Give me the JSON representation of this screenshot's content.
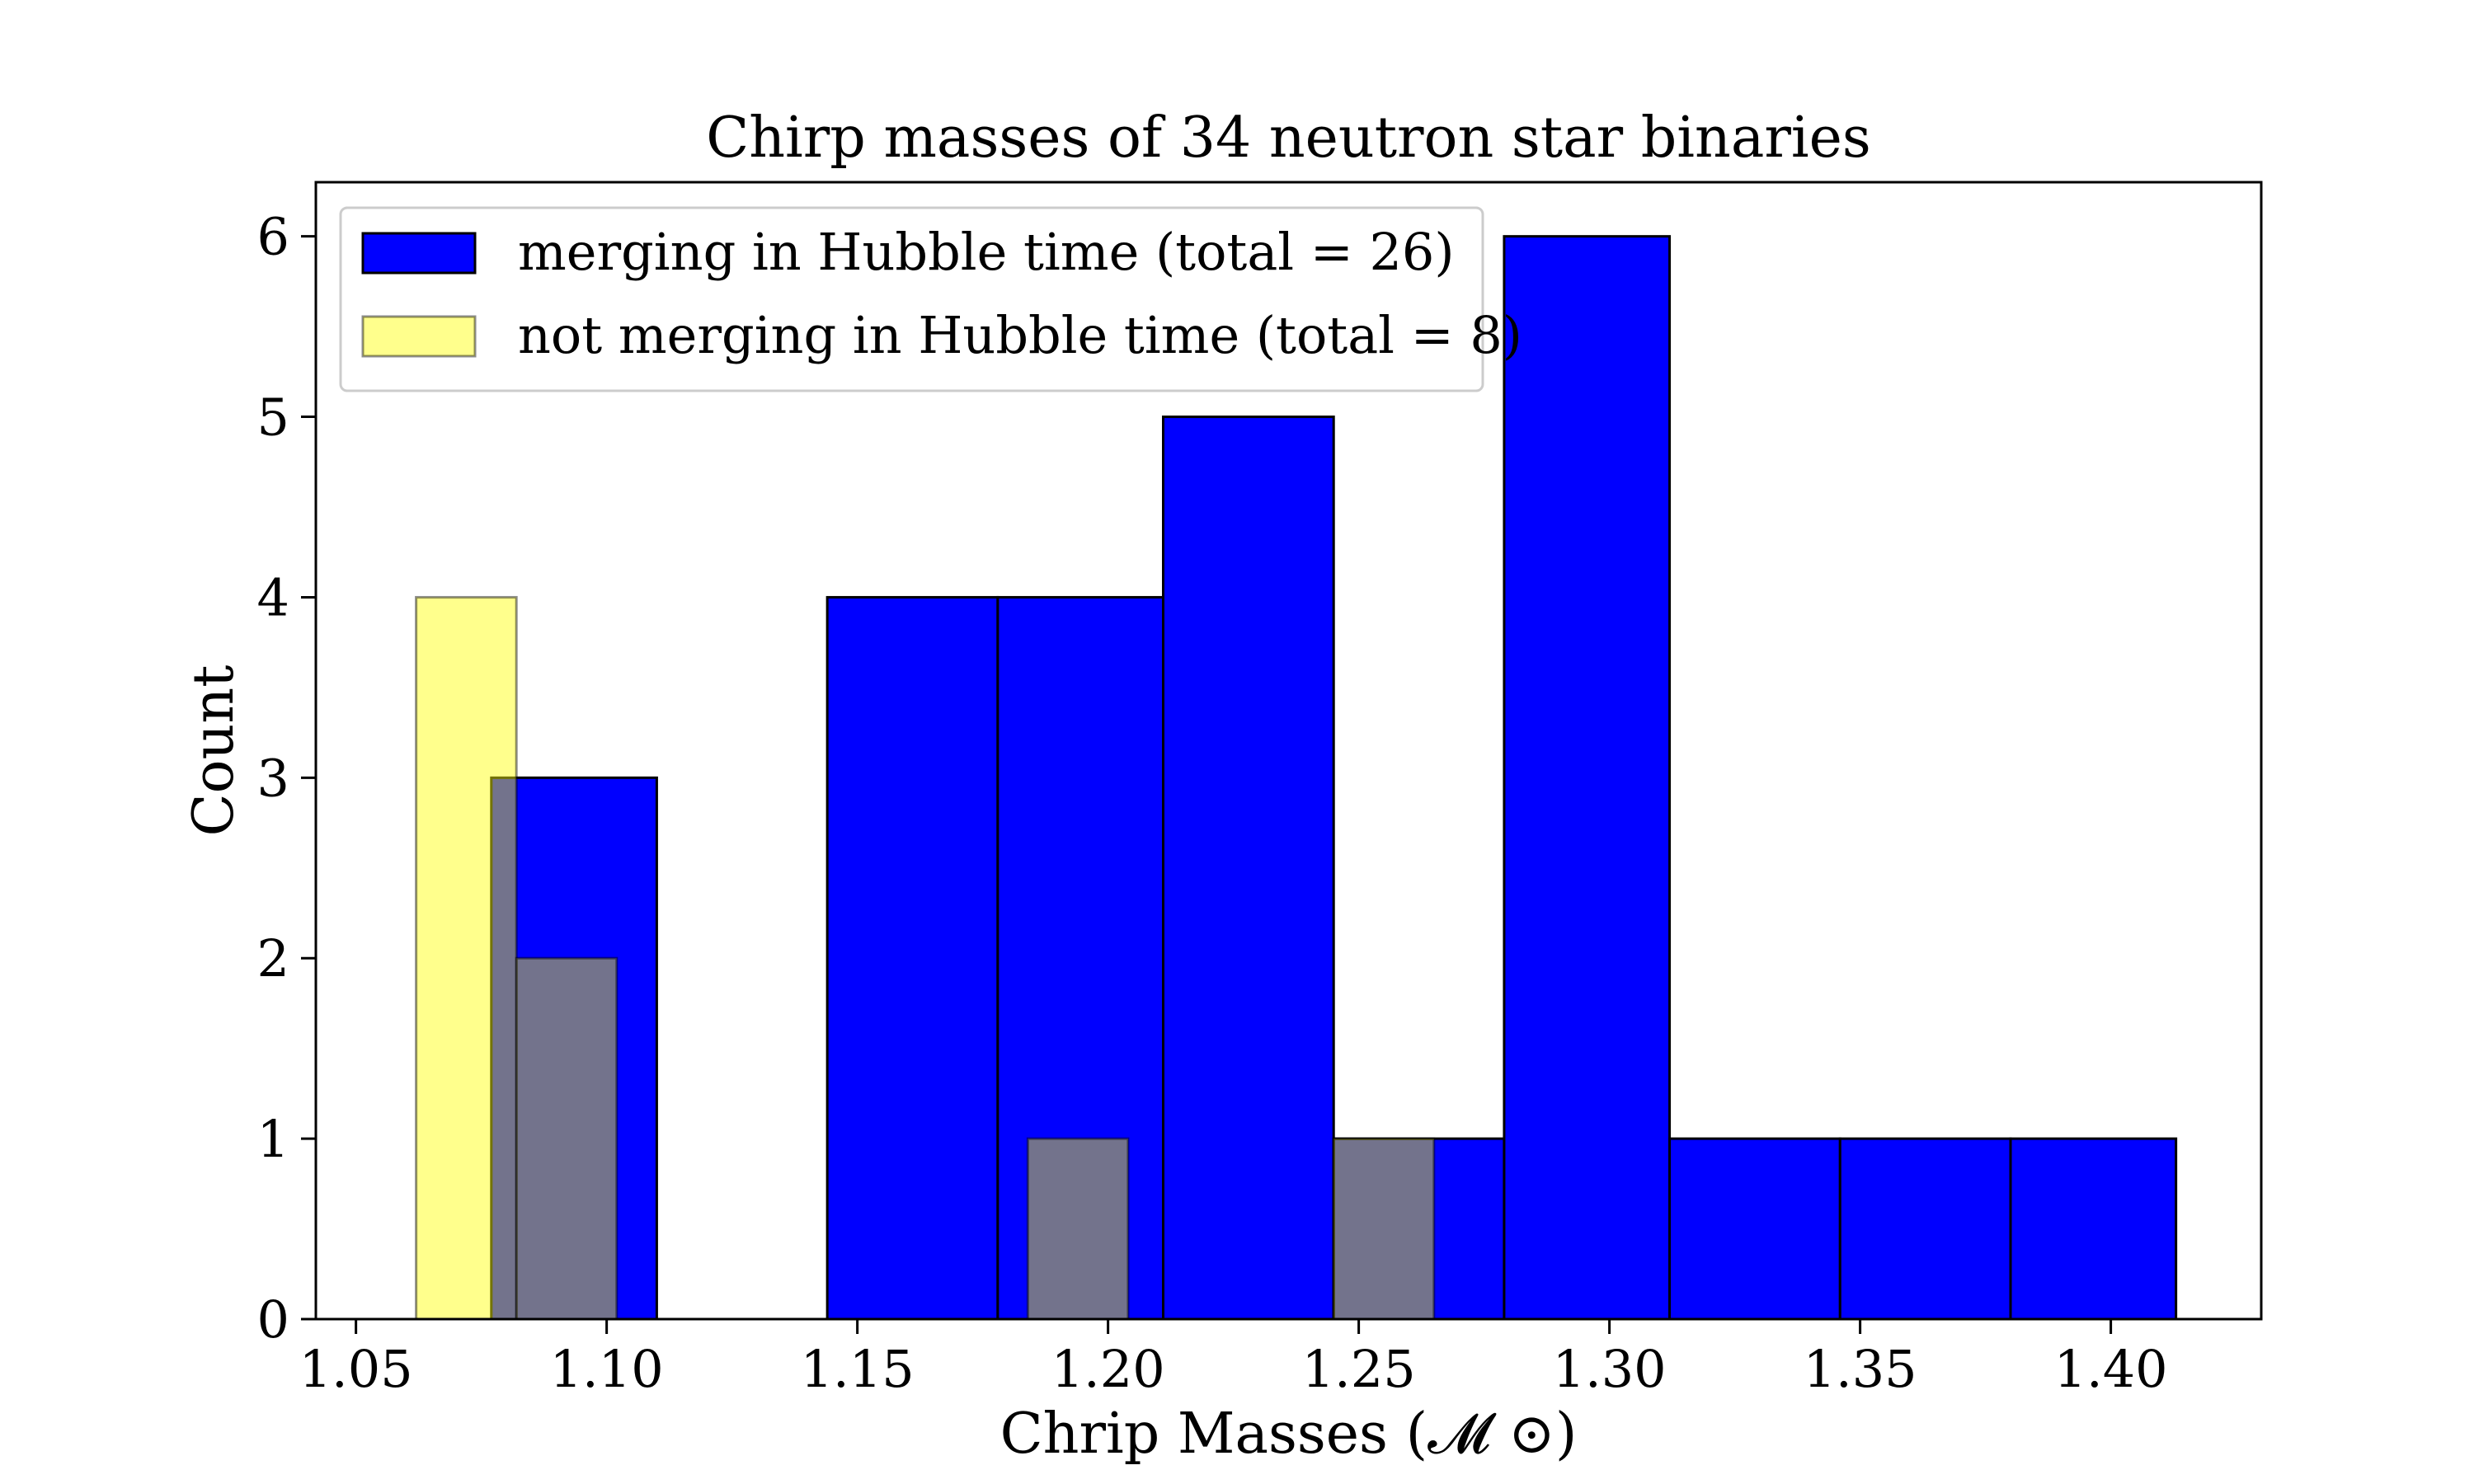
{
  "chart_data": {
    "type": "histogram",
    "title": "Chirp masses of 34 neutron star binaries",
    "xlabel": "Chrip Masses (𝓜 ⊙)",
    "ylabel": "Count",
    "xlim": [
      1.042,
      1.43
    ],
    "ylim": [
      0,
      6.3
    ],
    "xticks": [
      "1.05",
      "1.10",
      "1.15",
      "1.20",
      "1.25",
      "1.30",
      "1.35",
      "1.40"
    ],
    "yticks": [
      "0",
      "1",
      "2",
      "3",
      "4",
      "5",
      "6"
    ],
    "grid": false,
    "legend_position": "upper-left",
    "series": [
      {
        "name": "merging in Hubble time (total = 26)",
        "color": "#0000ff",
        "bins": [
          {
            "x0": 1.077,
            "x1": 1.11,
            "count": 3
          },
          {
            "x0": 1.11,
            "x1": 1.144,
            "count": 0
          },
          {
            "x0": 1.144,
            "x1": 1.178,
            "count": 4
          },
          {
            "x0": 1.178,
            "x1": 1.211,
            "count": 4
          },
          {
            "x0": 1.211,
            "x1": 1.245,
            "count": 5
          },
          {
            "x0": 1.245,
            "x1": 1.279,
            "count": 1
          },
          {
            "x0": 1.279,
            "x1": 1.312,
            "count": 6
          },
          {
            "x0": 1.312,
            "x1": 1.346,
            "count": 1
          },
          {
            "x0": 1.346,
            "x1": 1.38,
            "count": 1
          },
          {
            "x0": 1.38,
            "x1": 1.413,
            "count": 1
          }
        ]
      },
      {
        "name": "not merging in Hubble time (total = 8)",
        "color": "#ffff00",
        "opacity": 0.45,
        "bins": [
          {
            "x0": 1.062,
            "x1": 1.082,
            "count": 4
          },
          {
            "x0": 1.082,
            "x1": 1.102,
            "count": 2
          },
          {
            "x0": 1.102,
            "x1": 1.123,
            "count": 0
          },
          {
            "x0": 1.123,
            "x1": 1.143,
            "count": 0
          },
          {
            "x0": 1.143,
            "x1": 1.163,
            "count": 0
          },
          {
            "x0": 1.163,
            "x1": 1.184,
            "count": 0
          },
          {
            "x0": 1.184,
            "x1": 1.204,
            "count": 1
          },
          {
            "x0": 1.204,
            "x1": 1.224,
            "count": 0
          },
          {
            "x0": 1.224,
            "x1": 1.245,
            "count": 0
          },
          {
            "x0": 1.245,
            "x1": 1.265,
            "count": 1
          }
        ]
      }
    ]
  }
}
